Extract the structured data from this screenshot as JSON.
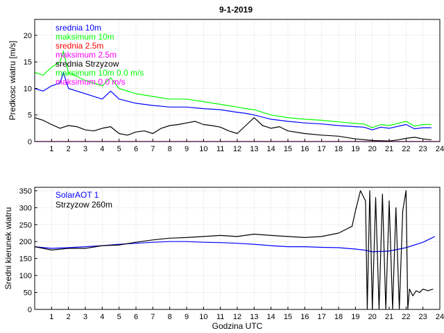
{
  "figure_title": "9-1-2019",
  "chart_data": [
    {
      "type": "line",
      "title": "9-1-2019",
      "xlabel": "",
      "ylabel": "Predkosc wiatru [m/s]",
      "xlim": [
        0,
        24
      ],
      "ylim": [
        0,
        23
      ],
      "xticks": [
        1,
        2,
        3,
        4,
        5,
        6,
        7,
        8,
        9,
        10,
        11,
        12,
        13,
        14,
        15,
        16,
        17,
        18,
        19,
        20,
        21,
        22,
        23,
        24
      ],
      "yticks": [
        0,
        5,
        10,
        15,
        20
      ],
      "grid": true,
      "legend_placement": "top-left",
      "legend": [
        {
          "label": "srednia 10m",
          "color": "#0000ff"
        },
        {
          "label": "maksimum 10m",
          "color": "#00ff00"
        },
        {
          "label": "srednia 2.5m",
          "color": "#ff0000"
        },
        {
          "label": "maksimum 2.5m",
          "color": "#ff00ff"
        },
        {
          "label": "srednia Strzyzow",
          "color": "#000000"
        },
        {
          "label": "maksimum 10m 0.0 m/s",
          "color": "#00ff00"
        },
        {
          "label": "maksimum 0.0 m/s",
          "color": "#ff00ff"
        }
      ],
      "series": [
        {
          "name": "maksimum 10m",
          "color": "#00ff00",
          "x": [
            0,
            0.5,
            1,
            1.5,
            1.7,
            2,
            3,
            4,
            4.5,
            5,
            6,
            7,
            8,
            9,
            10,
            11,
            12,
            12.5,
            13,
            14,
            15,
            16,
            17,
            18,
            19,
            19.5,
            20,
            20.5,
            21,
            22,
            22.5,
            23,
            23.5
          ],
          "y": [
            13,
            12.5,
            14,
            15,
            17,
            13,
            11.5,
            10.5,
            12,
            10,
            9,
            8.5,
            8,
            8,
            7.5,
            7,
            6.5,
            6.2,
            6,
            5,
            4.5,
            4.2,
            4,
            3.7,
            3.4,
            3.3,
            2.6,
            3.2,
            3,
            3.8,
            2.9,
            3.2,
            3.2
          ]
        },
        {
          "name": "srednia 10m",
          "color": "#0000ff",
          "x": [
            0,
            0.5,
            1,
            1.5,
            1.7,
            2,
            3,
            4,
            4.5,
            5,
            6,
            7,
            8,
            9,
            10,
            11,
            12,
            12.5,
            13,
            14,
            15,
            16,
            17,
            18,
            19,
            19.5,
            20,
            20.5,
            21,
            22,
            22.5,
            23,
            23.5
          ],
          "y": [
            10,
            9.5,
            10.5,
            11,
            13,
            10,
            9,
            8,
            9.5,
            8,
            7.2,
            6.8,
            6.5,
            6.5,
            6.2,
            6,
            5.5,
            5.3,
            5,
            4.2,
            3.8,
            3.5,
            3.3,
            3,
            2.8,
            2.7,
            2.2,
            2.7,
            2.5,
            3.2,
            2.4,
            2.6,
            2.6
          ]
        },
        {
          "name": "srednia Strzyzow",
          "color": "#000000",
          "x": [
            0,
            0.5,
            1,
            1.5,
            2,
            2.5,
            3,
            3.5,
            4,
            4.5,
            5,
            5.5,
            6,
            6.5,
            7,
            7.5,
            8,
            8.5,
            9,
            9.5,
            10,
            10.5,
            11,
            11.5,
            12,
            12.5,
            13,
            13.5,
            14,
            14.5,
            15,
            16,
            17,
            18,
            19,
            20,
            21,
            21.5,
            22,
            22.5,
            23,
            23.5
          ],
          "y": [
            4.5,
            4,
            3.2,
            2.5,
            3,
            2.8,
            2.2,
            2,
            2.5,
            2.8,
            1.5,
            1.2,
            1.8,
            2,
            1.5,
            2.5,
            3,
            3.2,
            3.5,
            3.8,
            3.2,
            3,
            2.7,
            2,
            1.5,
            3,
            4.5,
            3,
            2.5,
            2.8,
            2,
            1.5,
            1.2,
            1,
            0.5,
            0.2,
            0.1,
            0.3,
            0.6,
            0.8,
            0.5,
            0.3
          ]
        },
        {
          "name": "maksimum 2.5m",
          "color": "#ff00ff",
          "x": [
            0,
            24
          ],
          "y": [
            0,
            0
          ]
        }
      ]
    },
    {
      "type": "line",
      "title": "",
      "xlabel": "Godzina UTC",
      "ylabel": "Sredni kierunek wiatru",
      "xlim": [
        0,
        24
      ],
      "ylim": [
        0,
        360
      ],
      "xticks": [
        1,
        2,
        3,
        4,
        5,
        6,
        7,
        8,
        9,
        10,
        11,
        12,
        13,
        14,
        15,
        16,
        17,
        18,
        19,
        20,
        21,
        22,
        23,
        24
      ],
      "yticks": [
        0,
        50,
        100,
        150,
        200,
        250,
        300,
        350
      ],
      "grid": true,
      "legend_placement": "top-left",
      "legend": [
        {
          "label": "SolarAOT 1",
          "color": "#0000ff"
        },
        {
          "label": "Strzyzow 260m",
          "color": "#000000"
        }
      ],
      "series": [
        {
          "name": "SolarAOT 1",
          "color": "#0000ff",
          "x": [
            0,
            1,
            2,
            3,
            4,
            5,
            6,
            7,
            8,
            9,
            10,
            11,
            12,
            13,
            14,
            15,
            16,
            17,
            18,
            19,
            19.5,
            20,
            21,
            22,
            23,
            23.7
          ],
          "y": [
            185,
            180,
            182,
            185,
            188,
            192,
            195,
            198,
            200,
            200,
            198,
            197,
            195,
            192,
            188,
            185,
            185,
            183,
            182,
            178,
            175,
            170,
            172,
            182,
            198,
            215
          ]
        },
        {
          "name": "Strzyzow 260m",
          "color": "#000000",
          "x": [
            0,
            1,
            2,
            3,
            4,
            5,
            6,
            7,
            8,
            9,
            10,
            11,
            12,
            13,
            14,
            15,
            16,
            17,
            18,
            18.8,
            19,
            19.3,
            19.6,
            19.7,
            19.85,
            20,
            20.2,
            20.4,
            20.6,
            20.8,
            21,
            21.2,
            21.4,
            21.6,
            21.8,
            22,
            22.1,
            22.2,
            22.4,
            22.6,
            22.8,
            23,
            23.3,
            23.6
          ],
          "y": [
            185,
            175,
            180,
            180,
            188,
            190,
            198,
            205,
            210,
            212,
            215,
            218,
            215,
            222,
            218,
            215,
            212,
            215,
            225,
            245,
            290,
            350,
            320,
            0,
            350,
            0,
            330,
            0,
            340,
            0,
            320,
            0,
            300,
            0,
            290,
            350,
            0,
            60,
            40,
            55,
            50,
            60,
            55,
            60
          ]
        }
      ]
    }
  ]
}
